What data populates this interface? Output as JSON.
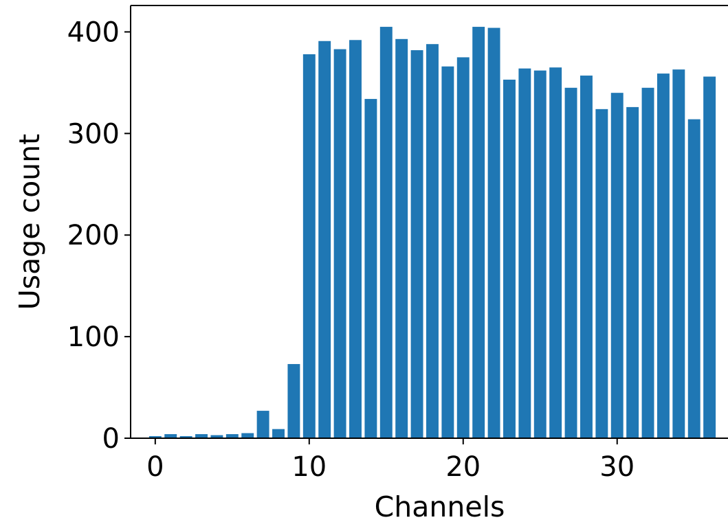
{
  "chart_data": {
    "type": "bar",
    "title": "",
    "xlabel": "Channels",
    "ylabel": "Usage count",
    "x": [
      0,
      1,
      2,
      3,
      4,
      5,
      6,
      7,
      8,
      9,
      10,
      11,
      12,
      13,
      14,
      15,
      16,
      17,
      18,
      19,
      20,
      21,
      22,
      23,
      24,
      25,
      26,
      27,
      28,
      29,
      30,
      31,
      32,
      33,
      34,
      35,
      36
    ],
    "values": [
      2,
      4,
      2,
      4,
      3,
      4,
      5,
      27,
      9,
      73,
      378,
      391,
      383,
      392,
      334,
      405,
      393,
      382,
      388,
      366,
      375,
      405,
      404,
      353,
      364,
      362,
      365,
      345,
      357,
      324,
      340,
      326,
      345,
      359,
      363,
      314,
      356
    ],
    "xlim": [
      -1.6,
      37.2
    ],
    "ylim": [
      0,
      426
    ],
    "xticks": [
      0,
      10,
      20,
      30
    ],
    "yticks": [
      0,
      100,
      200,
      300,
      400
    ],
    "bar_color": "#1f77b4",
    "grid": false,
    "legend": "none"
  }
}
